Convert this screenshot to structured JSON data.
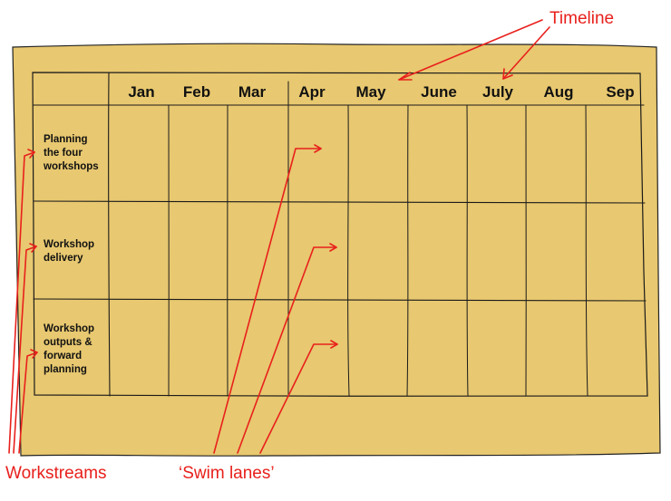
{
  "timeline": {
    "months": [
      "Jan",
      "Feb",
      "Mar",
      "Apr",
      "May",
      "June",
      "July",
      "Aug",
      "Sep"
    ]
  },
  "workstreams": [
    {
      "lines": [
        "Planning",
        "the four",
        "workshops"
      ]
    },
    {
      "lines": [
        "Workshop",
        "delivery"
      ]
    },
    {
      "lines": [
        "Workshop",
        "outputs &",
        "forward",
        "planning"
      ]
    }
  ],
  "annotations": {
    "timeline": "Timeline",
    "workstreams": "Workstreams",
    "swim_lanes": "‘Swim lanes’"
  },
  "colors": {
    "paper": "#e8c870",
    "paper_edge": "#222222",
    "ink": "#1a1a1a",
    "annotation": "#e8201c"
  }
}
